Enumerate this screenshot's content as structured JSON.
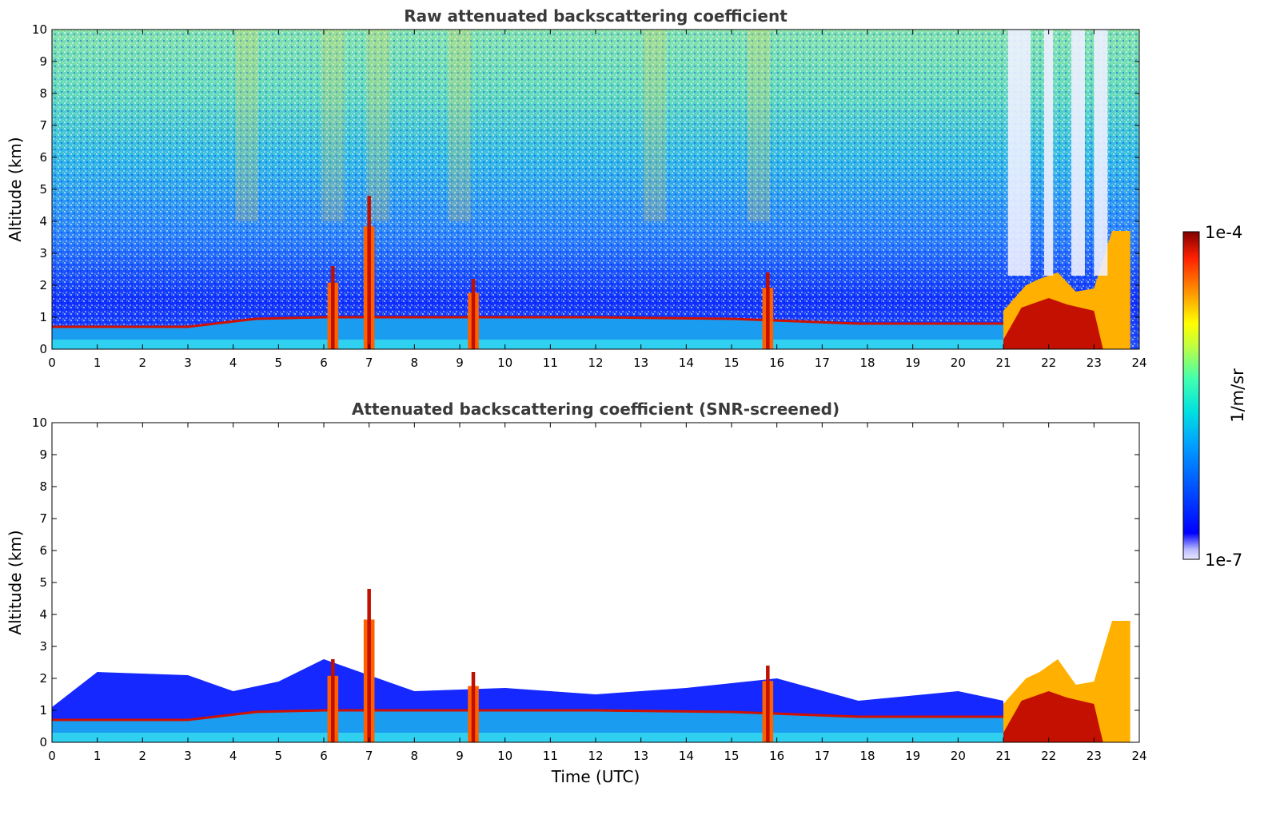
{
  "chart_data": [
    {
      "type": "heatmap",
      "title": "Raw attenuated backscattering coefficient",
      "xlabel": "",
      "ylabel": "Altitude (km)",
      "xlim": [
        0,
        24
      ],
      "ylim": [
        0,
        10
      ],
      "x_ticks": [
        "0",
        "1",
        "2",
        "3",
        "4",
        "5",
        "6",
        "7",
        "8",
        "9",
        "10",
        "11",
        "12",
        "13",
        "14",
        "15",
        "16",
        "17",
        "18",
        "19",
        "20",
        "21",
        "22",
        "23",
        "24"
      ],
      "y_ticks": [
        "0",
        "1",
        "2",
        "3",
        "4",
        "5",
        "6",
        "7",
        "8",
        "9",
        "10"
      ],
      "screened": false,
      "features": {
        "boundary_layer_top_km": [
          [
            0,
            0.7
          ],
          [
            3,
            0.7
          ],
          [
            4.5,
            0.95
          ],
          [
            6,
            1.0
          ],
          [
            9,
            1.0
          ],
          [
            12,
            1.0
          ],
          [
            15,
            0.95
          ],
          [
            17.8,
            0.8
          ],
          [
            21,
            0.8
          ]
        ],
        "convective_columns": [
          {
            "t": 6.2,
            "top_km": 2.6
          },
          {
            "t": 7.0,
            "top_km": 4.8
          },
          {
            "t": 9.3,
            "top_km": 2.2
          },
          {
            "t": 15.8,
            "top_km": 2.4
          }
        ],
        "dense_region": {
          "t_start": 21.0,
          "t_end": 23.8,
          "top_km": 2.4,
          "peak_top_km": 3.7
        },
        "low_signal_bands": [
          [
            21.1,
            21.6
          ],
          [
            21.9,
            22.1
          ],
          [
            22.5,
            22.8
          ],
          [
            23.0,
            23.3
          ]
        ]
      }
    },
    {
      "type": "heatmap",
      "title": "Attenuated backscattering coefficient (SNR-screened)",
      "xlabel": "Time (UTC)",
      "ylabel": "Altitude (km)",
      "xlim": [
        0,
        24
      ],
      "ylim": [
        0,
        10
      ],
      "x_ticks": [
        "0",
        "1",
        "2",
        "3",
        "4",
        "5",
        "6",
        "7",
        "8",
        "9",
        "10",
        "11",
        "12",
        "13",
        "14",
        "15",
        "16",
        "17",
        "18",
        "19",
        "20",
        "21",
        "22",
        "23",
        "24"
      ],
      "y_ticks": [
        "0",
        "1",
        "2",
        "3",
        "4",
        "5",
        "6",
        "7",
        "8",
        "9",
        "10"
      ],
      "screened": true,
      "features": {
        "signal_top_km": [
          [
            0,
            1.1
          ],
          [
            1,
            2.2
          ],
          [
            3,
            2.1
          ],
          [
            4,
            1.6
          ],
          [
            5,
            1.9
          ],
          [
            6,
            2.6
          ],
          [
            8,
            1.6
          ],
          [
            10,
            1.7
          ],
          [
            12,
            1.5
          ],
          [
            14,
            1.7
          ],
          [
            16,
            2.0
          ],
          [
            17.8,
            1.3
          ],
          [
            20,
            1.6
          ],
          [
            21,
            1.3
          ]
        ],
        "dense_region": {
          "t_start": 21.0,
          "t_end": 23.8,
          "top_km": 2.6,
          "peak_top_km": 3.8
        }
      }
    }
  ],
  "colorbar": {
    "label": "1/m/sr",
    "max_label": "1e-4",
    "min_label": "1e-7",
    "colormap": "jet",
    "min_value": 1e-07,
    "max_value": 0.0001
  }
}
